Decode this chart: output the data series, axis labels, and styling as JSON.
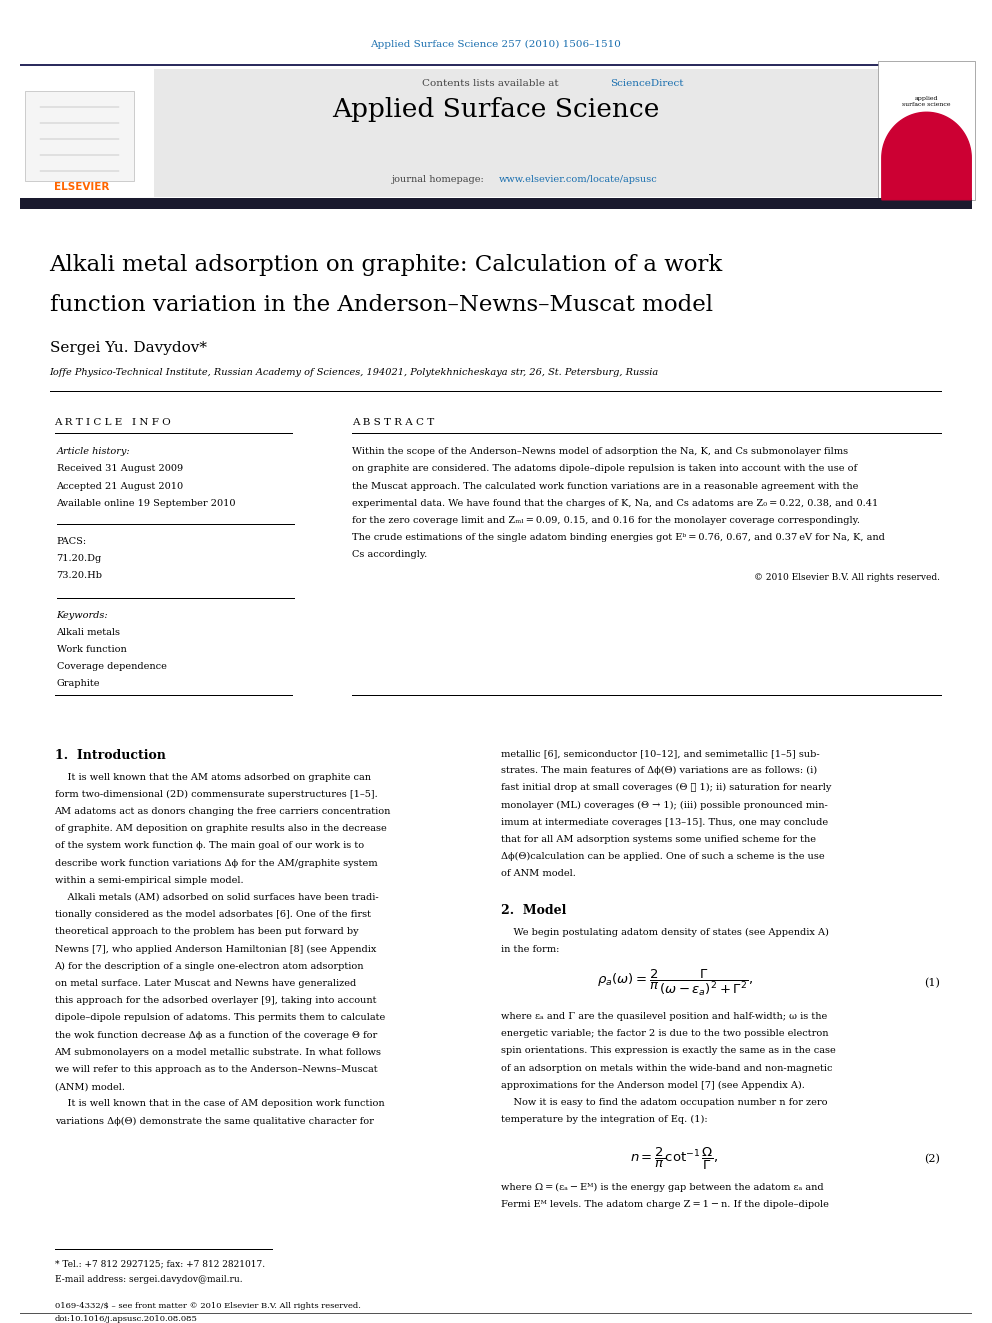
{
  "page_width": 9.92,
  "page_height": 13.23,
  "bg_color": "#ffffff",
  "header_journal_text": "Applied Surface Science 257 (2010) 1506–1510",
  "header_journal_color": "#1a0dab",
  "header_bg_color": "#e8e8e8",
  "header_elsevier_text": "ELSEVIER",
  "header_contents_text": "Contents lists available at ScienceDirect",
  "header_journal_name": "Applied Surface Science",
  "header_homepage_text": "journal homepage: www.elsevier.com/locate/apsusc",
  "dark_bar_color": "#1a1a2e",
  "title_text": "Alkali metal adsorption on graphite: Calculation of a work\nfunction variation in the Anderson–Newns–Muscat model",
  "author_text": "Sergei Yu. Davydov*",
  "affiliation_text": "Ioffe Physico-Technical Institute, Russian Academy of Sciences, 194021, Polytekhnicheskaya str, 26, St. Petersburg, Russia",
  "article_info_header": "A R T I C L E   I N F O",
  "abstract_header": "A B S T R A C T",
  "article_history_title": "Article history:",
  "received_text": "Received 31 August 2009",
  "accepted_text": "Accepted 21 August 2010",
  "available_text": "Available online 19 September 2010",
  "pacs_title": "PACS:",
  "pacs_items": [
    "71.20.Dg",
    "73.20.Hb"
  ],
  "keywords_title": "Keywords:",
  "keywords": [
    "Alkali metals",
    "Work function",
    "Coverage dependence",
    "Graphite"
  ],
  "abstract_text": "Within the scope of the Anderson–Newns model of adsorption the Na, K, and Cs submonolayer films on graphite are considered.",
  "copyright_text": "© 2010 Elsevier B.V. All rights reserved.",
  "intro_heading": "1.  Introduction",
  "model_heading": "2.  Model",
  "equation1": "$\\rho_a(\\omega) = \\dfrac{2}{\\pi} \\dfrac{\\Gamma}{(\\omega - \\varepsilon_a)^2 + \\Gamma^2},$",
  "eq1_number": "(1)",
  "equation2": "$n = \\dfrac{2}{\\pi} \\cot^{-1} \\dfrac{\\Omega}{\\Gamma},$",
  "eq2_number": "(2)",
  "footnote_tel": "* Tel.: +7 812 2927125; fax: +7 812 2821017.",
  "footnote_email": "E-mail address: sergei.davydov@mail.ru.",
  "footer_issn": "0169-4332/$ – see front matter © 2010 Elsevier B.V. All rights reserved.",
  "footer_doi": "doi:10.1016/j.apsusc.2010.08.085",
  "link_color": "#1a6faf",
  "text_color": "#000000",
  "section_color": "#000080"
}
